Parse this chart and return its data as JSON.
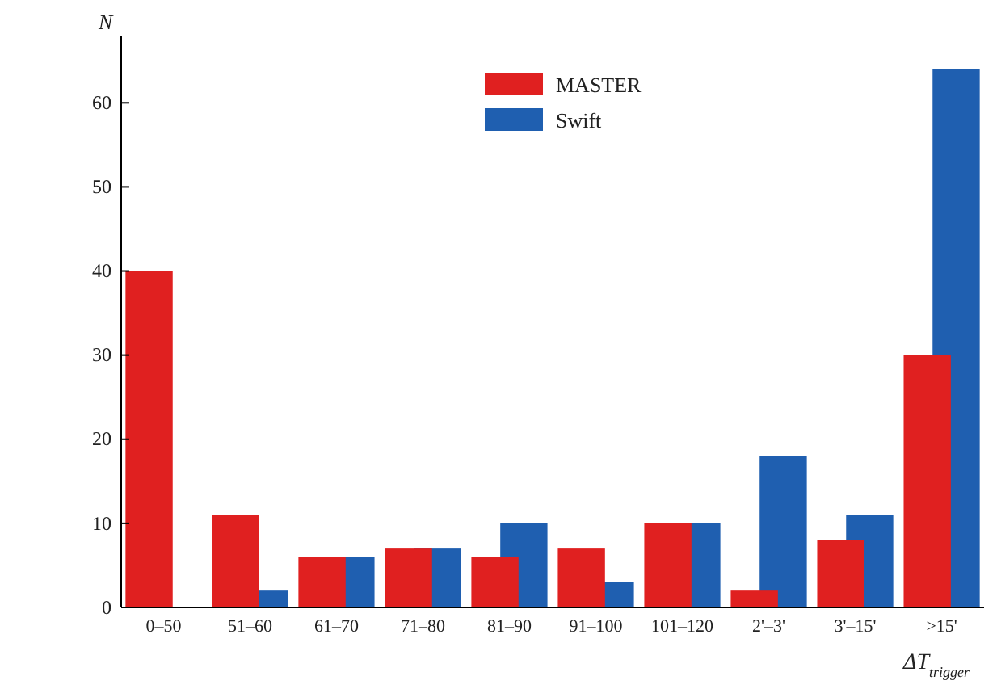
{
  "chart_data": {
    "type": "bar",
    "xlabel": "ΔT$_{trigger}$",
    "ylabel": "N",
    "categories": [
      "0–50",
      "51–60",
      "61–70",
      "71–80",
      "81–90",
      "91–100",
      "101–120",
      "2'–3'",
      "3'–15'",
      ">15'"
    ],
    "series": [
      {
        "name": "Swift",
        "color": "#1f5fb0",
        "values": [
          0,
          2,
          6,
          7,
          10,
          3,
          10,
          18,
          11,
          64
        ]
      },
      {
        "name": "MASTER",
        "color": "#e02020",
        "values": [
          40,
          11,
          6,
          7,
          6,
          7,
          10,
          2,
          8,
          30
        ]
      }
    ],
    "ylim": [
      0,
      68
    ],
    "yticks": [
      0,
      10,
      20,
      30,
      40,
      50,
      60
    ],
    "legend": "top",
    "grid": false
  }
}
